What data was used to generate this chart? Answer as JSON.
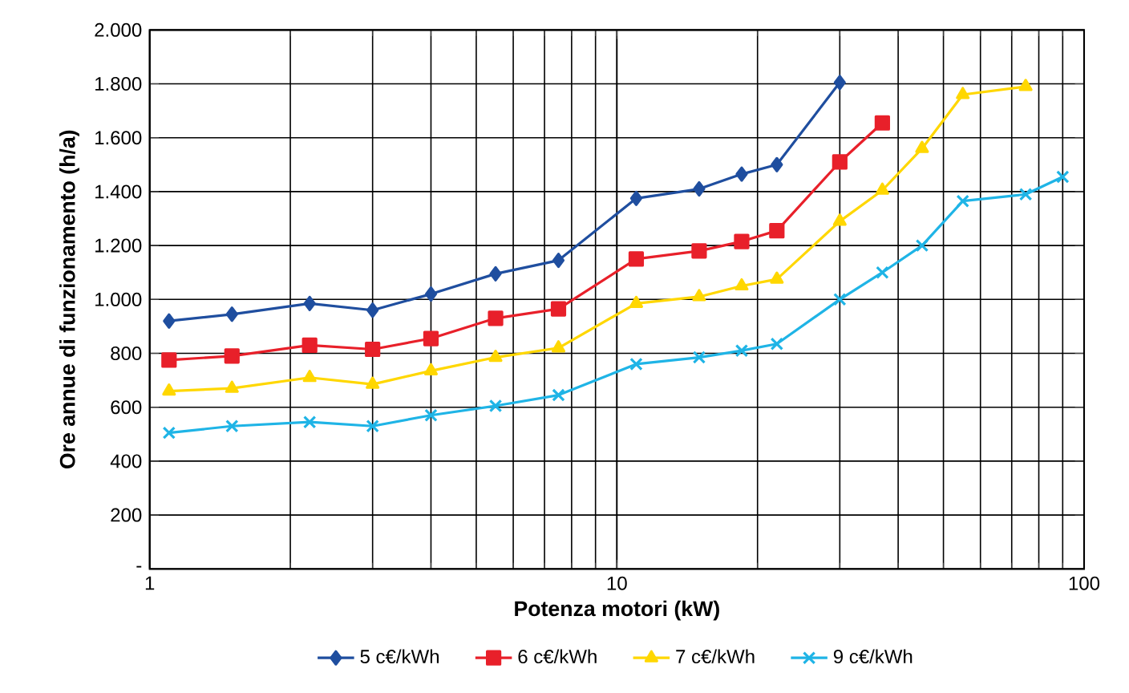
{
  "chart_data": {
    "type": "line",
    "xlabel": "Potenza motori (kW)",
    "ylabel": "Ore annue di funzionamento (h/a)",
    "log": "x",
    "grid": true,
    "legend": "bottom",
    "line_style": "solid",
    "xlim": [
      1,
      100
    ],
    "xticks": [
      1,
      10,
      100
    ],
    "ylim": [
      0,
      2000
    ],
    "yticks": [
      {
        "value": 0,
        "label": "-"
      },
      {
        "value": 200,
        "label": "200"
      },
      {
        "value": 400,
        "label": "400"
      },
      {
        "value": 600,
        "label": "600"
      },
      {
        "value": 800,
        "label": "800"
      },
      {
        "value": 1000,
        "label": "1.000"
      },
      {
        "value": 1200,
        "label": "1.200"
      },
      {
        "value": 1400,
        "label": "1.400"
      },
      {
        "value": 1600,
        "label": "1.600"
      },
      {
        "value": 1800,
        "label": "1.800"
      },
      {
        "value": 2000,
        "label": "2.000"
      }
    ],
    "series": [
      {
        "name": "5 c€/kWh",
        "color": "#1f4e9f",
        "marker": "diamond",
        "x": [
          1.1,
          1.5,
          2.2,
          3,
          4,
          5.5,
          7.5,
          11,
          15,
          18.5,
          22,
          30
        ],
        "values": [
          920,
          945,
          985,
          960,
          1020,
          1095,
          1145,
          1375,
          1410,
          1465,
          1500,
          1805
        ]
      },
      {
        "name": "6 c€/kWh",
        "color": "#e8202a",
        "marker": "square",
        "x": [
          1.1,
          1.5,
          2.2,
          3,
          4,
          5.5,
          7.5,
          11,
          15,
          18.5,
          22,
          30,
          37
        ],
        "values": [
          775,
          790,
          830,
          815,
          855,
          930,
          965,
          1150,
          1180,
          1215,
          1255,
          1510,
          1655
        ]
      },
      {
        "name": "7 c€/kWh",
        "color": "#ffd700",
        "marker": "triangle",
        "x": [
          1.1,
          1.5,
          2.2,
          3,
          4,
          5.5,
          7.5,
          11,
          15,
          18.5,
          22,
          30,
          37,
          45,
          55,
          75
        ],
        "values": [
          660,
          670,
          710,
          685,
          735,
          785,
          820,
          985,
          1010,
          1050,
          1075,
          1290,
          1405,
          1560,
          1760,
          1790
        ]
      },
      {
        "name": "9 c€/kWh",
        "color": "#1fb4e6",
        "marker": "cross",
        "x": [
          1.1,
          1.5,
          2.2,
          3,
          4,
          5.5,
          7.5,
          11,
          15,
          18.5,
          22,
          30,
          37,
          45,
          55,
          75,
          90
        ],
        "values": [
          505,
          530,
          545,
          530,
          570,
          605,
          645,
          760,
          785,
          810,
          835,
          1000,
          1100,
          1200,
          1365,
          1390,
          1455
        ]
      }
    ]
  }
}
